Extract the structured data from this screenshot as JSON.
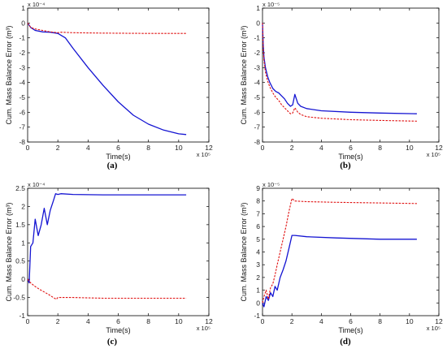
{
  "chart_data": [
    {
      "type": "line",
      "panel_label": "(a)",
      "xlabel": "Time(s)",
      "ylabel": "Cum. Mass Balance Error (m³)",
      "x_multiplier": "x 10⁵",
      "y_multiplier": "x 10⁻⁴",
      "xlim": [
        0,
        12
      ],
      "ylim": [
        -8,
        1
      ],
      "x_ticks": [
        "0",
        "2",
        "4",
        "6",
        "8",
        "10",
        "12"
      ],
      "y_ticks": [
        "-8",
        "-7",
        "-6",
        "-5",
        "-4",
        "-3",
        "-2",
        "-1",
        "0",
        "1"
      ],
      "series": [
        {
          "color": "#1414d2",
          "style": "solid",
          "x": [
            0,
            0.2,
            0.5,
            1.0,
            1.5,
            2.0,
            2.5,
            3.0,
            4.0,
            5.0,
            6.0,
            7.0,
            8.0,
            9.0,
            10.0,
            10.5
          ],
          "y": [
            0,
            -0.3,
            -0.5,
            -0.6,
            -0.62,
            -0.7,
            -1.0,
            -1.7,
            -3.0,
            -4.2,
            -5.3,
            -6.2,
            -6.8,
            -7.2,
            -7.45,
            -7.5
          ]
        },
        {
          "color": "#e01010",
          "style": "dashed",
          "x": [
            0,
            0.2,
            0.5,
            1.0,
            1.5,
            2.0,
            2.2,
            3.0,
            5.0,
            8.0,
            10.5
          ],
          "y": [
            0,
            -0.3,
            -0.4,
            -0.5,
            -0.6,
            -0.65,
            -0.62,
            -0.65,
            -0.68,
            -0.7,
            -0.7
          ]
        }
      ]
    },
    {
      "type": "line",
      "panel_label": "(b)",
      "xlabel": "Time(s)",
      "ylabel": "Cum. Mass Balance Error (m³)",
      "x_multiplier": "x 10⁵",
      "y_multiplier": "x 10⁻⁵",
      "xlim": [
        0,
        12
      ],
      "ylim": [
        -8,
        1
      ],
      "x_ticks": [
        "0",
        "2",
        "4",
        "6",
        "8",
        "10",
        "12"
      ],
      "y_ticks": [
        "-8",
        "-7",
        "-6",
        "-5",
        "-4",
        "-3",
        "-2",
        "-1",
        "0",
        "1"
      ],
      "series": [
        {
          "color": "#1414d2",
          "style": "solid",
          "x": [
            0,
            0.05,
            0.1,
            0.2,
            0.35,
            0.5,
            0.7,
            0.9,
            1.1,
            1.3,
            1.5,
            1.7,
            1.9,
            2.05,
            2.2,
            2.4,
            2.6,
            3.0,
            4.0,
            6.0,
            8.0,
            10.5
          ],
          "y": [
            0,
            -1.5,
            -2.3,
            -3.0,
            -3.6,
            -4.0,
            -4.4,
            -4.6,
            -4.7,
            -4.9,
            -5.1,
            -5.4,
            -5.6,
            -5.5,
            -4.8,
            -5.4,
            -5.6,
            -5.75,
            -5.9,
            -6.0,
            -6.05,
            -6.1
          ]
        },
        {
          "color": "#e01010",
          "style": "dashed",
          "x": [
            0,
            0.05,
            0.1,
            0.2,
            0.35,
            0.5,
            0.7,
            0.9,
            1.1,
            1.3,
            1.5,
            1.7,
            1.9,
            2.05,
            2.2,
            2.4,
            2.6,
            3.0,
            4.0,
            6.0,
            8.0,
            10.5
          ],
          "y": [
            0,
            -1.7,
            -2.5,
            -3.3,
            -3.9,
            -4.3,
            -4.7,
            -5.0,
            -5.2,
            -5.5,
            -5.7,
            -5.9,
            -6.1,
            -6.05,
            -5.7,
            -6.0,
            -6.15,
            -6.3,
            -6.4,
            -6.5,
            -6.55,
            -6.6
          ]
        }
      ]
    },
    {
      "type": "line",
      "panel_label": "(c)",
      "xlabel": "Time(s)",
      "ylabel": "Cum. Mass Balance Error (m³)",
      "x_multiplier": "x 10⁵",
      "y_multiplier": "x 10⁻⁴",
      "xlim": [
        0,
        12
      ],
      "ylim": [
        -1,
        2.5
      ],
      "x_ticks": [
        "0",
        "2",
        "4",
        "6",
        "8",
        "10",
        "12"
      ],
      "y_ticks": [
        "-1",
        "-0.5",
        "0",
        "0.5",
        "1",
        "1.5",
        "2",
        "2.5"
      ],
      "series": [
        {
          "color": "#1414d2",
          "style": "solid",
          "x": [
            0,
            0.1,
            0.2,
            0.35,
            0.5,
            0.7,
            0.9,
            1.1,
            1.3,
            1.5,
            1.7,
            1.85,
            2.0,
            2.2,
            3.0,
            5.0,
            8.0,
            10.5
          ],
          "y": [
            0,
            -0.1,
            0.9,
            1.0,
            1.65,
            1.2,
            1.5,
            1.95,
            1.5,
            1.9,
            2.15,
            2.35,
            2.33,
            2.35,
            2.33,
            2.32,
            2.32,
            2.32
          ]
        },
        {
          "color": "#e01010",
          "style": "dashed",
          "x": [
            0,
            0.1,
            0.2,
            0.5,
            0.8,
            1.1,
            1.4,
            1.7,
            1.9,
            2.0,
            2.3,
            3.0,
            5.0,
            8.0,
            10.5
          ],
          "y": [
            0,
            -0.05,
            -0.1,
            -0.2,
            -0.28,
            -0.35,
            -0.42,
            -0.5,
            -0.55,
            -0.5,
            -0.5,
            -0.5,
            -0.52,
            -0.52,
            -0.52
          ]
        }
      ]
    },
    {
      "type": "line",
      "panel_label": "(d)",
      "xlabel": "Time(s)",
      "ylabel": "Cum. Mass Balance Error (m³)",
      "x_multiplier": "x 10⁵",
      "y_multiplier": "x 10⁻⁵",
      "xlim": [
        0,
        12
      ],
      "ylim": [
        -1,
        9
      ],
      "x_ticks": [
        "0",
        "2",
        "4",
        "6",
        "8",
        "10",
        "12"
      ],
      "y_ticks": [
        "-1",
        "0",
        "1",
        "2",
        "3",
        "4",
        "5",
        "6",
        "7",
        "8",
        "9"
      ],
      "series": [
        {
          "color": "#1414d2",
          "style": "solid",
          "x": [
            0,
            0.1,
            0.25,
            0.4,
            0.55,
            0.7,
            0.85,
            1.0,
            1.2,
            1.4,
            1.6,
            1.8,
            2.0,
            2.2,
            3.0,
            5.0,
            8.0,
            10.5
          ],
          "y": [
            0,
            -0.3,
            0.5,
            0.2,
            0.8,
            0.5,
            1.3,
            1.0,
            2.0,
            2.6,
            3.3,
            4.3,
            5.3,
            5.3,
            5.2,
            5.1,
            5.0,
            5.0
          ]
        },
        {
          "color": "#e01010",
          "style": "dashed",
          "x": [
            0,
            0.1,
            0.25,
            0.4,
            0.55,
            0.7,
            0.85,
            1.0,
            1.2,
            1.4,
            1.6,
            1.8,
            2.0,
            2.2,
            3.0,
            5.0,
            8.0,
            10.5
          ],
          "y": [
            0,
            0.5,
            1.0,
            0.3,
            1.2,
            1.5,
            2.2,
            3.0,
            4.0,
            5.0,
            6.0,
            7.2,
            8.2,
            8.0,
            7.95,
            7.9,
            7.85,
            7.8
          ]
        }
      ]
    }
  ]
}
